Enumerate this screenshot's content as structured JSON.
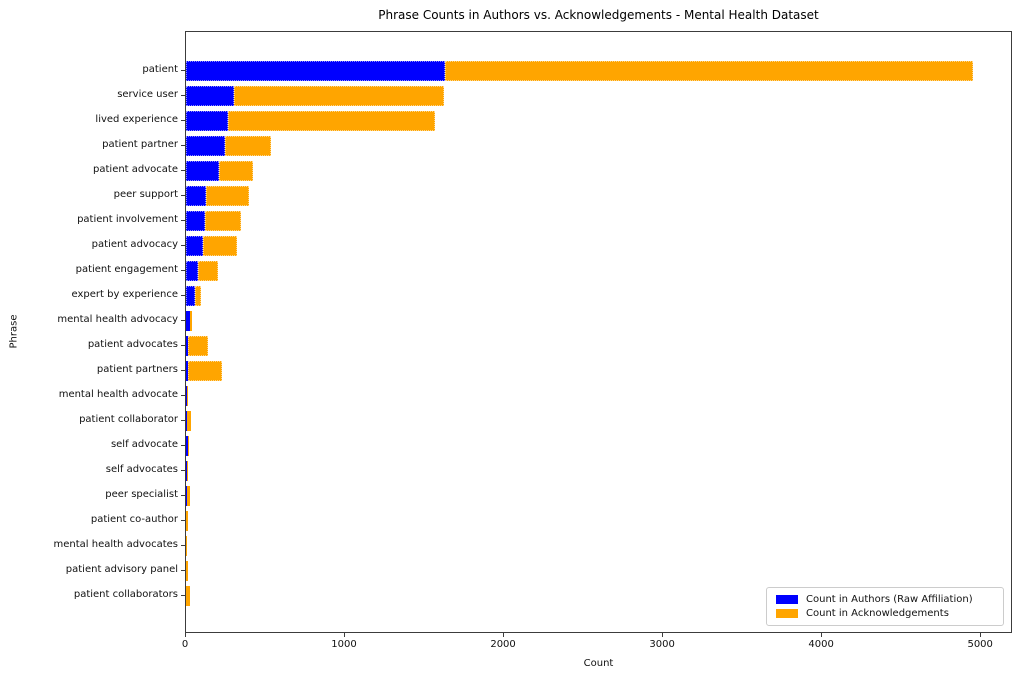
{
  "chart_data": {
    "type": "bar",
    "orientation": "horizontal",
    "stacked": true,
    "title": "Phrase Counts in Authors vs. Acknowledgements - Mental Health Dataset",
    "xlabel": "Count",
    "ylabel": "Phrase",
    "xlim": [
      0,
      5200
    ],
    "x_ticks": [
      0,
      1000,
      2000,
      3000,
      4000,
      5000
    ],
    "grid": false,
    "legend_position": "lower right",
    "categories": [
      "patient",
      "service user",
      "lived experience",
      "patient partner",
      "patient advocate",
      "peer support",
      "patient involvement",
      "patient advocacy",
      "patient engagement",
      "expert by experience",
      "mental health advocacy",
      "patient advocates",
      "patient partners",
      "mental health advocate",
      "patient collaborator",
      "self advocate",
      "self advocates",
      "peer specialist",
      "patient co-author",
      "mental health advocates",
      "patient advisory panel",
      "patient collaborators"
    ],
    "series": [
      {
        "name": "Count in Authors (Raw Affiliation)",
        "color": "#0000ff",
        "values": [
          1630,
          300,
          265,
          245,
          210,
          125,
          120,
          105,
          78,
          57,
          23,
          13,
          15,
          8,
          6,
          12,
          9,
          6,
          1,
          1,
          1,
          1
        ]
      },
      {
        "name": "Count in Acknowledgements",
        "color": "#ffa500",
        "values": [
          3320,
          1320,
          1300,
          290,
          210,
          270,
          225,
          215,
          125,
          38,
          13,
          126,
          210,
          5,
          25,
          1,
          1,
          22,
          11,
          2,
          11,
          24
        ]
      }
    ]
  }
}
